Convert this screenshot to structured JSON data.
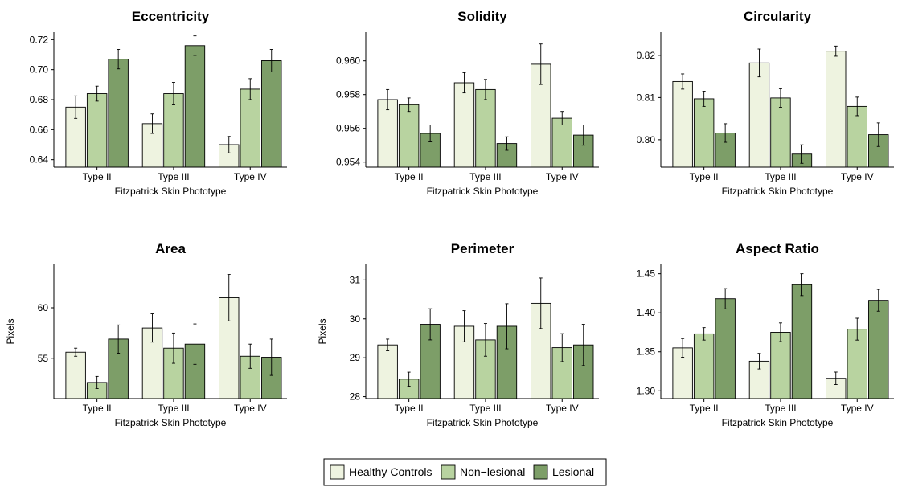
{
  "colors": {
    "Healthy Controls": "#eef3e0",
    "Non-lesional": "#b8d3a0",
    "Lesional": "#7d9e68"
  },
  "legend": {
    "items": [
      "Healthy Controls",
      "Non−lesional",
      "Lesional"
    ]
  },
  "chart_data": [
    {
      "type": "bar",
      "title": "Eccentricity",
      "xlabel": "Fitzpatrick Skin Phototype",
      "ylabel": "",
      "categories": [
        "Type II",
        "Type III",
        "Type IV"
      ],
      "ylim": [
        0.635,
        0.725
      ],
      "yticks": [
        "0.64",
        "0.66",
        "0.68",
        "0.70",
        "0.72"
      ],
      "series": [
        {
          "name": "Healthy Controls",
          "values": [
            0.675,
            0.664,
            0.65
          ],
          "err": [
            0.0075,
            0.0065,
            0.0055
          ]
        },
        {
          "name": "Non−lesional",
          "values": [
            0.684,
            0.684,
            0.687
          ],
          "err": [
            0.005,
            0.0075,
            0.007
          ]
        },
        {
          "name": "Lesional",
          "values": [
            0.707,
            0.716,
            0.706
          ],
          "err": [
            0.0065,
            0.0065,
            0.0075
          ]
        }
      ]
    },
    {
      "type": "bar",
      "title": "Solidity",
      "xlabel": "Fitzpatrick Skin Phototype",
      "ylabel": "",
      "categories": [
        "Type II",
        "Type III",
        "Type IV"
      ],
      "ylim": [
        0.9537,
        0.9617
      ],
      "yticks": [
        "0.954",
        "0.956",
        "0.958",
        "0.960"
      ],
      "series": [
        {
          "name": "Healthy Controls",
          "values": [
            0.9577,
            0.9587,
            0.9598
          ],
          "err": [
            0.0006,
            0.0006,
            0.0012
          ]
        },
        {
          "name": "Non−lesional",
          "values": [
            0.9574,
            0.9583,
            0.9566
          ],
          "err": [
            0.0004,
            0.0006,
            0.0004
          ]
        },
        {
          "name": "Lesional",
          "values": [
            0.9557,
            0.9551,
            0.9556
          ],
          "err": [
            0.0005,
            0.0004,
            0.0006
          ]
        }
      ]
    },
    {
      "type": "bar",
      "title": "Circularity",
      "xlabel": "Fitzpatrick Skin Phototype",
      "ylabel": "",
      "categories": [
        "Type II",
        "Type III",
        "Type IV"
      ],
      "ylim": [
        0.7935,
        0.8255
      ],
      "yticks": [
        "0.80",
        "0.81",
        "0.82"
      ],
      "series": [
        {
          "name": "Healthy Controls",
          "values": [
            0.8138,
            0.8182,
            0.821
          ],
          "err": [
            0.0018,
            0.0033,
            0.0012
          ]
        },
        {
          "name": "Non−lesional",
          "values": [
            0.8097,
            0.8099,
            0.8079
          ],
          "err": [
            0.0018,
            0.0022,
            0.0022
          ]
        },
        {
          "name": "Lesional",
          "values": [
            0.8016,
            0.7966,
            0.8012
          ],
          "err": [
            0.0022,
            0.0022,
            0.0028
          ]
        }
      ]
    },
    {
      "type": "bar",
      "title": "Area",
      "xlabel": "Fitzpatrick Skin Phototype",
      "ylabel": "Pixels",
      "categories": [
        "Type II",
        "Type III",
        "Type IV"
      ],
      "ylim": [
        51.0,
        64.3
      ],
      "yticks": [
        "55",
        "60"
      ],
      "series": [
        {
          "name": "Healthy Controls",
          "values": [
            55.6,
            58.0,
            61.0
          ],
          "err": [
            0.4,
            1.4,
            2.3
          ]
        },
        {
          "name": "Non−lesional",
          "values": [
            52.6,
            56.0,
            55.2
          ],
          "err": [
            0.6,
            1.5,
            1.2
          ]
        },
        {
          "name": "Lesional",
          "values": [
            56.9,
            56.4,
            55.1
          ],
          "err": [
            1.4,
            2.0,
            1.8
          ]
        }
      ]
    },
    {
      "type": "bar",
      "title": "Perimeter",
      "xlabel": "Fitzpatrick Skin Phototype",
      "ylabel": "Pixels",
      "categories": [
        "Type II",
        "Type III",
        "Type IV"
      ],
      "ylim": [
        27.95,
        31.4
      ],
      "yticks": [
        "28",
        "29",
        "30",
        "31"
      ],
      "series": [
        {
          "name": "Healthy Controls",
          "values": [
            29.33,
            29.81,
            30.4
          ],
          "err": [
            0.15,
            0.4,
            0.65
          ]
        },
        {
          "name": "Non−lesional",
          "values": [
            28.45,
            29.46,
            29.26
          ],
          "err": [
            0.18,
            0.42,
            0.36
          ]
        },
        {
          "name": "Lesional",
          "values": [
            29.86,
            29.81,
            29.33
          ],
          "err": [
            0.4,
            0.58,
            0.53
          ]
        }
      ]
    },
    {
      "type": "bar",
      "title": "Aspect Ratio",
      "xlabel": "Fitzpatrick Skin Phototype",
      "ylabel": "",
      "categories": [
        "Type II",
        "Type III",
        "Type IV"
      ],
      "ylim": [
        1.29,
        1.462
      ],
      "yticks": [
        "1.30",
        "1.35",
        "1.40",
        "1.45"
      ],
      "series": [
        {
          "name": "Healthy Controls",
          "values": [
            1.355,
            1.338,
            1.316
          ],
          "err": [
            0.012,
            0.01,
            0.008
          ]
        },
        {
          "name": "Non−lesional",
          "values": [
            1.373,
            1.375,
            1.379
          ],
          "err": [
            0.008,
            0.012,
            0.014
          ]
        },
        {
          "name": "Lesional",
          "values": [
            1.418,
            1.436,
            1.416
          ],
          "err": [
            0.013,
            0.014,
            0.014
          ]
        }
      ]
    }
  ]
}
